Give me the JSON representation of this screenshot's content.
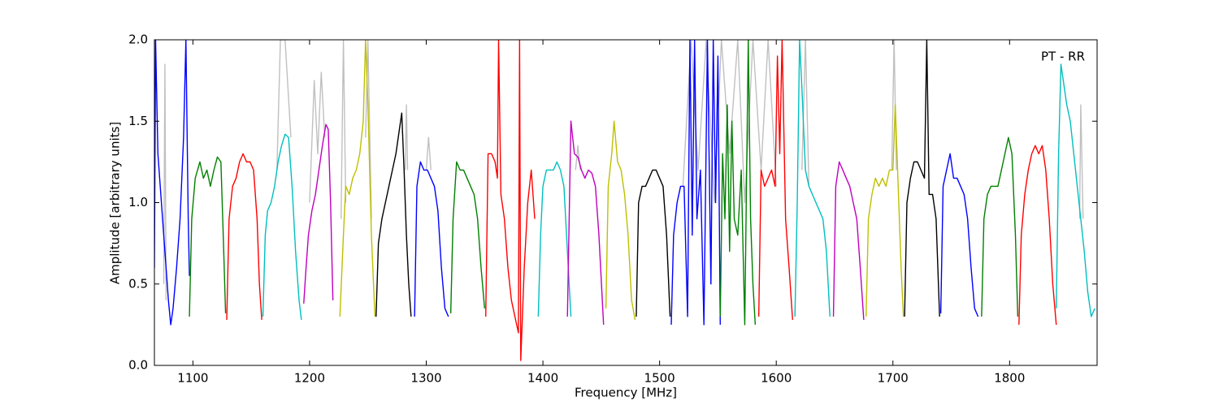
{
  "chart_data": {
    "type": "line",
    "annotation": "PT - RR",
    "xlabel": "Frequency [MHz]",
    "ylabel": "Amplitude [arbitrary units]",
    "xlim": [
      1067,
      1875
    ],
    "ylim": [
      0,
      2
    ],
    "xticks": [
      1100,
      1200,
      1300,
      1400,
      1500,
      1600,
      1700,
      1800
    ],
    "yticks": [
      {
        "value": 0,
        "label": "0.0"
      },
      0.5,
      {
        "value": 1,
        "label": "1.0"
      },
      1.5,
      {
        "value": 2,
        "label": "2.0"
      }
    ],
    "series": [
      {
        "color": "#c0c0c0",
        "x": [
          1075,
          1076,
          1077,
          null,
          1172,
          1175,
          1179,
          1184,
          null,
          1200,
          1204,
          1207,
          1210,
          1213,
          null,
          1227,
          1229,
          1231,
          null,
          1248,
          1250,
          1253,
          null,
          1282,
          1283,
          1284,
          null,
          1300,
          1302,
          1304,
          null,
          1428,
          1430,
          1432,
          null,
          1520,
          1527,
          1533,
          1540,
          1547,
          1553,
          1560,
          1567,
          1573,
          1580,
          1587,
          1593,
          1600,
          null,
          1622,
          1625,
          1628,
          null,
          1699,
          1701,
          1703,
          null,
          1860,
          1861,
          1863
        ],
        "values": [
          0.5,
          1.85,
          0.4,
          null,
          1.2,
          2.0,
          2.0,
          1.4,
          null,
          1.0,
          1.75,
          1.3,
          1.8,
          1.4,
          null,
          0.9,
          2.0,
          1.0,
          null,
          1.4,
          2.0,
          0.9,
          null,
          1.2,
          1.6,
          1.2,
          null,
          1.2,
          1.4,
          1.2,
          null,
          1.2,
          1.35,
          1.2,
          null,
          1.1,
          2.0,
          1.2,
          2.0,
          1.0,
          2.0,
          1.3,
          2.0,
          1.0,
          2.0,
          1.2,
          2.0,
          1.1,
          null,
          1.2,
          2.0,
          1.1,
          null,
          1.2,
          2.0,
          1.2,
          null,
          0.9,
          1.6,
          0.9
        ]
      },
      {
        "color": "#0000ff",
        "x": [
          1067,
          1068,
          1070,
          1073,
          1076,
          1079,
          1081,
          1083,
          1086,
          1089,
          1092,
          1094,
          1096,
          1097
        ],
        "values": [
          0.6,
          2.0,
          1.3,
          1.0,
          0.7,
          0.4,
          0.25,
          0.35,
          0.6,
          0.9,
          1.4,
          2.0,
          0.9,
          0.55
        ]
      },
      {
        "color": "#008000",
        "x": [
          1097,
          1099,
          1102,
          1106,
          1109,
          1112,
          1115,
          1118,
          1121,
          1124,
          1126,
          1128
        ],
        "values": [
          0.3,
          0.9,
          1.15,
          1.25,
          1.15,
          1.2,
          1.1,
          1.2,
          1.28,
          1.25,
          0.8,
          0.32
        ]
      },
      {
        "color": "#ff0000",
        "x": [
          1129,
          1131,
          1134,
          1137,
          1140,
          1143,
          1146,
          1149,
          1152,
          1155,
          1157,
          1159
        ],
        "values": [
          0.28,
          0.9,
          1.1,
          1.15,
          1.25,
          1.3,
          1.25,
          1.25,
          1.2,
          0.9,
          0.5,
          0.28
        ]
      },
      {
        "color": "#00bfbf",
        "x": [
          1160,
          1162,
          1164,
          1167,
          1170,
          1173,
          1176,
          1179,
          1182,
          1185,
          1188,
          1191,
          1193
        ],
        "values": [
          0.3,
          0.8,
          0.95,
          1.0,
          1.1,
          1.25,
          1.35,
          1.42,
          1.4,
          1.1,
          0.7,
          0.4,
          0.28
        ]
      },
      {
        "color": "#bf00bf",
        "x": [
          1195,
          1197,
          1199,
          1202,
          1205,
          1208,
          1211,
          1214,
          1216,
          1218,
          1220
        ],
        "values": [
          0.38,
          0.6,
          0.8,
          0.95,
          1.05,
          1.2,
          1.35,
          1.48,
          1.45,
          1.0,
          0.4
        ]
      },
      {
        "color": "#bfbf00",
        "x": [
          1226,
          1229,
          1231,
          1234,
          1237,
          1240,
          1243,
          1246,
          1248,
          1250,
          1253,
          1256
        ],
        "values": [
          0.3,
          0.8,
          1.1,
          1.05,
          1.15,
          1.2,
          1.3,
          1.5,
          2.0,
          1.6,
          0.8,
          0.3
        ]
      },
      {
        "color": "#000000",
        "x": [
          1257,
          1259,
          1262,
          1265,
          1268,
          1271,
          1274,
          1277,
          1279,
          1281,
          1283,
          1285,
          1287
        ],
        "values": [
          0.3,
          0.75,
          0.9,
          1.0,
          1.1,
          1.2,
          1.3,
          1.45,
          1.55,
          1.2,
          0.8,
          0.5,
          0.3
        ]
      },
      {
        "color": "#0000ff",
        "x": [
          1290,
          1292,
          1295,
          1298,
          1301,
          1304,
          1307,
          1310,
          1313,
          1316,
          1319
        ],
        "values": [
          0.3,
          1.1,
          1.25,
          1.2,
          1.2,
          1.15,
          1.1,
          0.95,
          0.6,
          0.35,
          0.3
        ]
      },
      {
        "color": "#008000",
        "x": [
          1321,
          1323,
          1326,
          1329,
          1332,
          1335,
          1338,
          1341,
          1344,
          1347,
          1350
        ],
        "values": [
          0.32,
          0.9,
          1.25,
          1.2,
          1.2,
          1.15,
          1.1,
          1.05,
          0.9,
          0.6,
          0.35
        ]
      },
      {
        "color": "#ff0000",
        "x": [
          1351,
          1353,
          1356,
          1359,
          1361,
          1362,
          1364,
          1367,
          1370,
          1373,
          1376,
          1379,
          1380,
          1381,
          1384,
          1387,
          1390,
          1393
        ],
        "values": [
          0.3,
          1.3,
          1.3,
          1.25,
          1.15,
          2.0,
          1.05,
          0.9,
          0.6,
          0.4,
          0.3,
          0.2,
          2.0,
          0.03,
          0.6,
          1.0,
          1.2,
          0.9
        ]
      },
      {
        "color": "#00bfbf",
        "x": [
          1396,
          1398,
          1400,
          1403,
          1406,
          1409,
          1412,
          1415,
          1418,
          1421,
          1424
        ],
        "values": [
          0.3,
          0.8,
          1.1,
          1.2,
          1.2,
          1.2,
          1.25,
          1.2,
          1.1,
          0.7,
          0.3
        ]
      },
      {
        "color": "#bf00bf",
        "x": [
          1421,
          1424,
          1427,
          1430,
          1433,
          1436,
          1439,
          1442,
          1445,
          1448,
          1452
        ],
        "values": [
          0.3,
          1.5,
          1.3,
          1.28,
          1.2,
          1.15,
          1.2,
          1.18,
          1.1,
          0.8,
          0.25
        ]
      },
      {
        "color": "#bfbf00",
        "x": [
          1454,
          1456,
          1459,
          1461,
          1464,
          1467,
          1470,
          1473,
          1476,
          1479
        ],
        "values": [
          0.35,
          1.1,
          1.3,
          1.5,
          1.25,
          1.2,
          1.05,
          0.8,
          0.4,
          0.28
        ]
      },
      {
        "color": "#000000",
        "x": [
          1480,
          1482,
          1485,
          1488,
          1491,
          1494,
          1497,
          1500,
          1503,
          1506,
          1509
        ],
        "values": [
          0.3,
          1.0,
          1.1,
          1.1,
          1.15,
          1.2,
          1.2,
          1.15,
          1.1,
          0.8,
          0.3
        ]
      },
      {
        "color": "#0000ff",
        "x": [
          1510,
          1512,
          1515,
          1518,
          1521,
          1524,
          1526,
          1528,
          1530,
          1532,
          1535,
          1538,
          1541,
          1544,
          1546,
          1548,
          1550,
          1552
        ],
        "values": [
          0.25,
          0.8,
          1.0,
          1.1,
          1.1,
          0.3,
          2.0,
          0.8,
          2.0,
          0.9,
          1.2,
          0.25,
          2.0,
          0.5,
          2.0,
          1.0,
          1.9,
          0.25
        ]
      },
      {
        "color": "#008000",
        "x": [
          1552,
          1554,
          1556,
          1558,
          1560,
          1562,
          1564,
          1567,
          1570,
          1573,
          1576,
          1578,
          1580,
          1582
        ],
        "values": [
          0.3,
          1.3,
          0.9,
          1.6,
          0.7,
          1.5,
          0.9,
          0.8,
          1.2,
          0.25,
          2.0,
          0.9,
          0.5,
          0.25
        ]
      },
      {
        "color": "#ff0000",
        "x": [
          1585,
          1587,
          1590,
          1593,
          1596,
          1599,
          1601,
          1603,
          1605,
          1608,
          1611,
          1614
        ],
        "values": [
          0.3,
          1.2,
          1.1,
          1.15,
          1.2,
          1.1,
          1.9,
          1.3,
          2.0,
          0.9,
          0.6,
          0.28
        ]
      },
      {
        "color": "#00bfbf",
        "x": [
          1616,
          1618,
          1620,
          1622,
          1625,
          1628,
          1631,
          1634,
          1637,
          1640,
          1643,
          1646
        ],
        "values": [
          0.3,
          1.0,
          2.0,
          1.7,
          1.2,
          1.1,
          1.05,
          1.0,
          0.95,
          0.9,
          0.7,
          0.3
        ]
      },
      {
        "color": "#bf00bf",
        "x": [
          1649,
          1651,
          1654,
          1657,
          1660,
          1663,
          1666,
          1669,
          1672,
          1675
        ],
        "values": [
          0.3,
          1.1,
          1.25,
          1.2,
          1.15,
          1.1,
          1.0,
          0.9,
          0.6,
          0.28
        ]
      },
      {
        "color": "#bfbf00",
        "x": [
          1677,
          1679,
          1682,
          1685,
          1688,
          1691,
          1694,
          1697,
          1700,
          1702,
          1704,
          1707,
          1709
        ],
        "values": [
          0.3,
          0.9,
          1.05,
          1.15,
          1.1,
          1.15,
          1.1,
          1.2,
          1.2,
          1.6,
          1.2,
          0.6,
          0.3
        ]
      },
      {
        "color": "#000000",
        "x": [
          1710,
          1712,
          1715,
          1718,
          1721,
          1724,
          1727,
          1729,
          1731,
          1734,
          1737,
          1740
        ],
        "values": [
          0.3,
          1.0,
          1.15,
          1.25,
          1.25,
          1.2,
          1.15,
          2.0,
          1.05,
          1.05,
          0.9,
          0.3
        ]
      },
      {
        "color": "#0000ff",
        "x": [
          1741,
          1743,
          1746,
          1749,
          1752,
          1755,
          1758,
          1761,
          1764,
          1767,
          1770,
          1773
        ],
        "values": [
          0.32,
          1.1,
          1.2,
          1.3,
          1.15,
          1.15,
          1.1,
          1.05,
          0.9,
          0.6,
          0.35,
          0.3
        ]
      },
      {
        "color": "#008000",
        "x": [
          1776,
          1778,
          1781,
          1784,
          1787,
          1790,
          1793,
          1796,
          1799,
          1802,
          1805,
          1807
        ],
        "values": [
          0.3,
          0.9,
          1.05,
          1.1,
          1.1,
          1.1,
          1.2,
          1.3,
          1.4,
          1.3,
          0.8,
          0.3
        ]
      },
      {
        "color": "#ff0000",
        "x": [
          1808,
          1810,
          1813,
          1816,
          1819,
          1822,
          1825,
          1828,
          1831,
          1834,
          1837,
          1840
        ],
        "values": [
          0.25,
          0.8,
          1.05,
          1.2,
          1.3,
          1.35,
          1.3,
          1.35,
          1.2,
          0.9,
          0.5,
          0.25
        ]
      },
      {
        "color": "#00bfbf",
        "x": [
          1840,
          1842,
          1844,
          1846,
          1849,
          1852,
          1855,
          1858,
          1861,
          1864,
          1867,
          1870,
          1873
        ],
        "values": [
          0.35,
          1.3,
          1.85,
          1.75,
          1.6,
          1.5,
          1.3,
          1.1,
          0.9,
          0.7,
          0.45,
          0.3,
          0.35
        ]
      }
    ]
  }
}
